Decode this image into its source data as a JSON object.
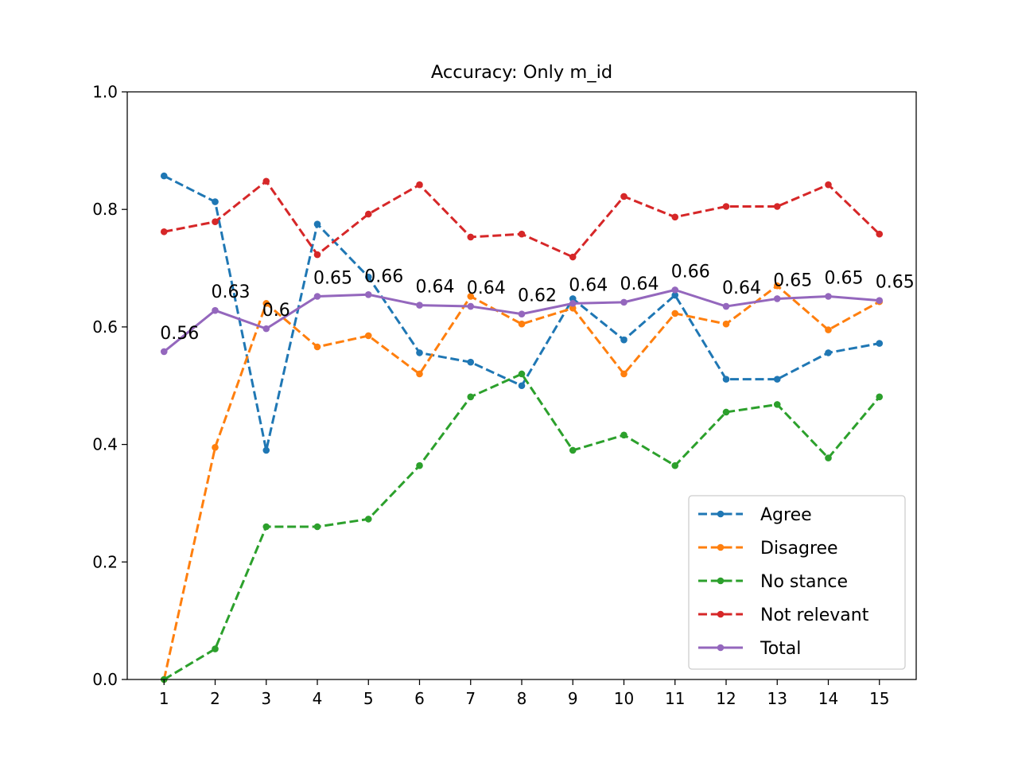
{
  "chart_data": {
    "type": "line",
    "title": "Accuracy: Only m_id",
    "xlabel": "",
    "ylabel": "",
    "x": [
      1,
      2,
      3,
      4,
      5,
      6,
      7,
      8,
      9,
      10,
      11,
      12,
      13,
      14,
      15
    ],
    "xlim": [
      0.28,
      15.72
    ],
    "ylim": [
      0,
      1
    ],
    "yticks": [
      "0.0",
      "0.2",
      "0.4",
      "0.6",
      "0.8",
      "1.0"
    ],
    "grid": false,
    "legend_position": "lower right",
    "series": [
      {
        "name": "Agree",
        "color": "#1f77b4",
        "style": "dashed",
        "values": [
          0.857,
          0.813,
          0.39,
          0.775,
          0.685,
          0.556,
          0.54,
          0.5,
          0.648,
          0.578,
          0.654,
          0.511,
          0.511,
          0.556,
          0.572
        ]
      },
      {
        "name": "Disagree",
        "color": "#ff7f0e",
        "style": "dashed",
        "values": [
          0.0,
          0.395,
          0.64,
          0.566,
          0.585,
          0.52,
          0.652,
          0.605,
          0.632,
          0.52,
          0.623,
          0.605,
          0.67,
          0.595,
          0.643
        ]
      },
      {
        "name": "No stance",
        "color": "#2ca02c",
        "style": "dashed",
        "values": [
          0.0,
          0.052,
          0.26,
          0.26,
          0.273,
          0.364,
          0.481,
          0.52,
          0.39,
          0.416,
          0.364,
          0.455,
          0.468,
          0.377,
          0.481
        ]
      },
      {
        "name": "Not relevant",
        "color": "#d62728",
        "style": "dashed",
        "values": [
          0.762,
          0.779,
          0.848,
          0.723,
          0.792,
          0.842,
          0.753,
          0.758,
          0.719,
          0.822,
          0.787,
          0.805,
          0.805,
          0.842,
          0.758
        ]
      },
      {
        "name": "Total",
        "color": "#9467bd",
        "style": "solid",
        "values": [
          0.558,
          0.628,
          0.597,
          0.652,
          0.655,
          0.637,
          0.635,
          0.622,
          0.64,
          0.642,
          0.663,
          0.635,
          0.648,
          0.652,
          0.645
        ],
        "labels": [
          "0.56",
          "0.63",
          "0.6",
          "0.65",
          "0.66",
          "0.64",
          "0.64",
          "0.62",
          "0.64",
          "0.64",
          "0.66",
          "0.64",
          "0.65",
          "0.65",
          "0.65"
        ]
      }
    ]
  }
}
